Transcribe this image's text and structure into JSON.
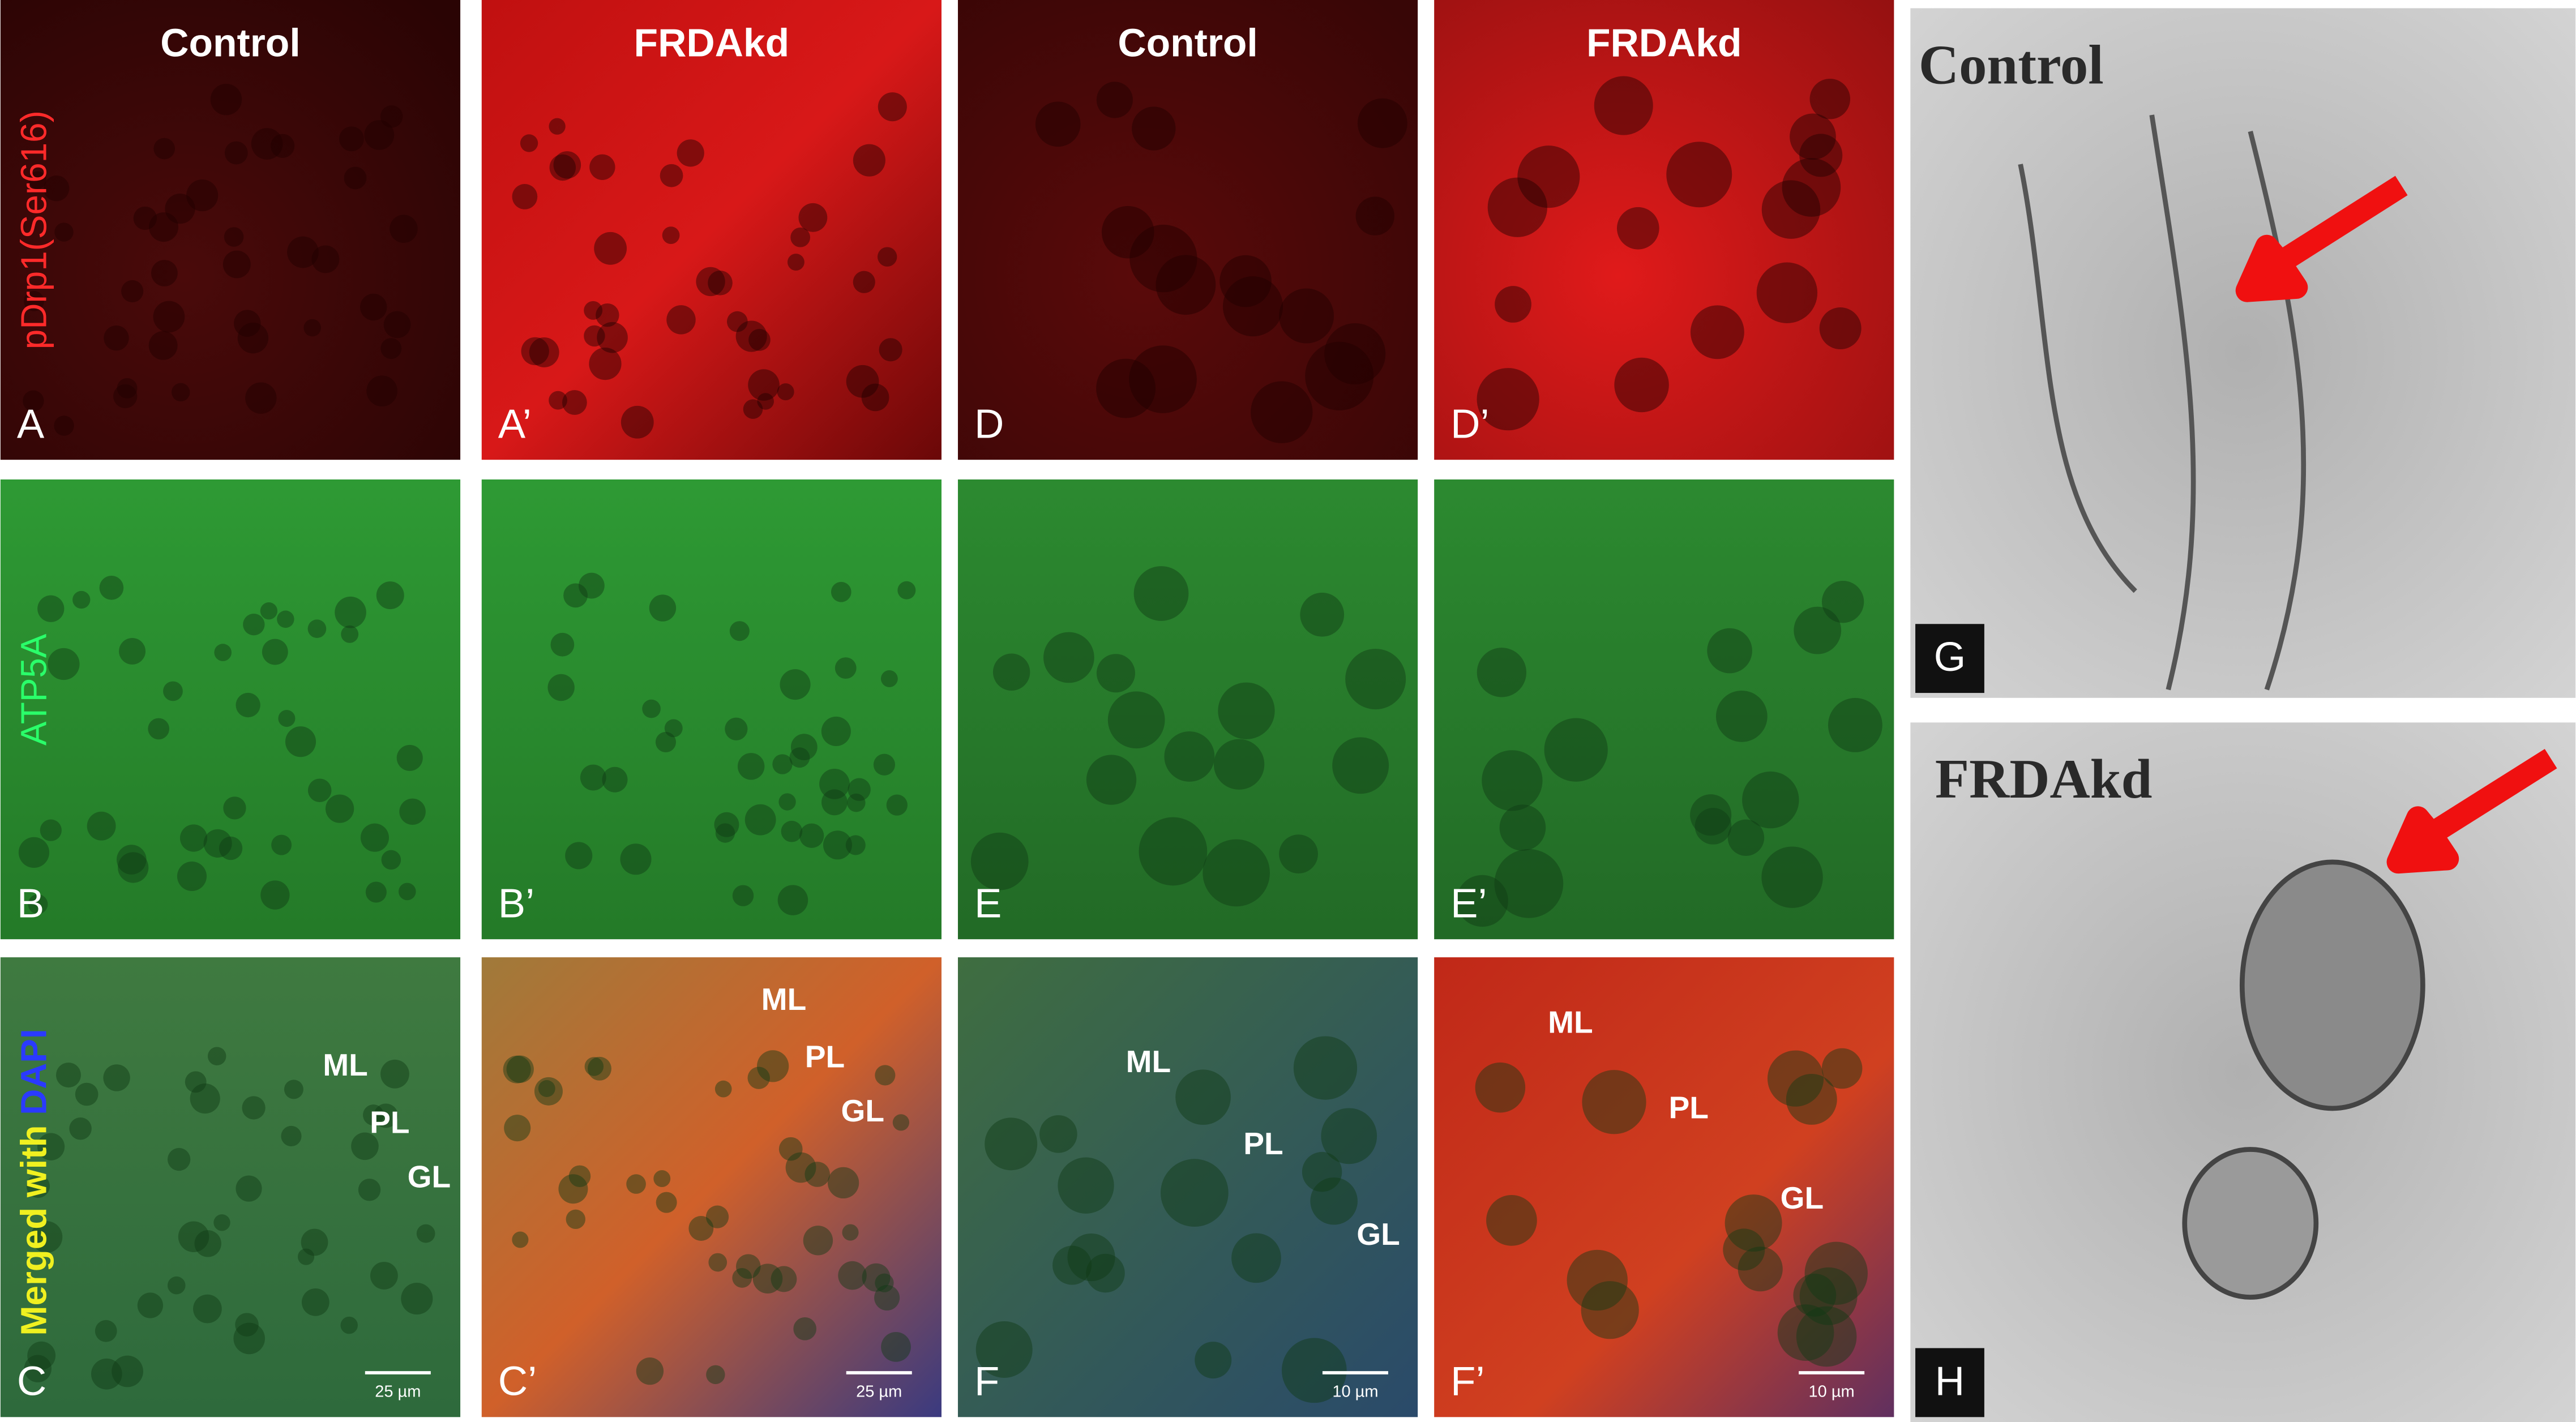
{
  "fluorescence": {
    "column_headers": [
      "Control",
      "FRDAkd",
      "Control",
      "FRDAkd"
    ],
    "row_labels": {
      "red": "pDrp1(Ser616)",
      "green": "ATP5A",
      "merged": [
        "Merged with",
        "DAPI"
      ]
    },
    "panel_letters": [
      [
        "A",
        "A’",
        "D",
        "D’"
      ],
      [
        "B",
        "B’",
        "E",
        "E’"
      ],
      [
        "C",
        "C’",
        "F",
        "F’"
      ]
    ],
    "layer_labels": [
      [
        "ML",
        "PL",
        "GL"
      ],
      [
        "ML",
        "PL",
        "GL"
      ],
      [
        "ML",
        "PL",
        "GL"
      ],
      [
        "ML",
        "PL",
        "GL"
      ]
    ],
    "scale_bars": [
      "25 µm",
      "25 µm",
      "10 µm",
      "10 µm"
    ]
  },
  "electron_microscopy": {
    "panels": [
      {
        "title": "Control",
        "letter": "G"
      },
      {
        "title": "FRDAkd",
        "letter": "H"
      }
    ]
  }
}
